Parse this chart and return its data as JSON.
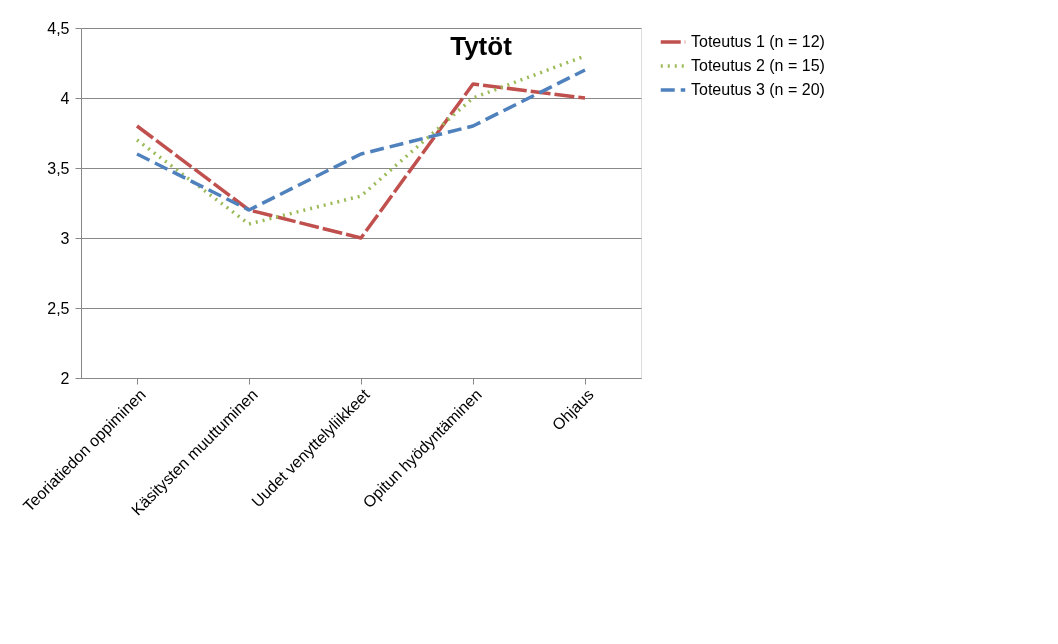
{
  "chart_data": {
    "type": "line",
    "title": "Tytöt",
    "categories": [
      "Teoriatiedon oppiminen",
      "Käsitysten muuttuminen",
      "Uudet venyttelyliikkeet",
      "Opitun hyödyntäminen",
      "Ohjaus"
    ],
    "series": [
      {
        "name": "Toteutus 1 (n = 12)",
        "color": "#c0504d",
        "line_style": "dashed",
        "values": [
          3.8,
          3.2,
          3.0,
          4.1,
          4.0
        ]
      },
      {
        "name": "Toteutus 2 (n = 15)",
        "color": "#9bbb59",
        "line_style": "dotted",
        "values": [
          3.7,
          3.1,
          3.3,
          4.0,
          4.3
        ]
      },
      {
        "name": "Toteutus 3 (n = 20)",
        "color": "#4f81bd",
        "line_style": "dashed",
        "values": [
          3.6,
          3.2,
          3.6,
          3.8,
          4.2
        ]
      }
    ],
    "ylim": [
      2,
      4.5
    ],
    "yticks": [
      2,
      {
        "value": 2.5,
        "label": "2,5"
      },
      3,
      {
        "value": 3.5,
        "label": "3,5"
      },
      4,
      {
        "value": 4.5,
        "label": "4,5"
      }
    ],
    "grid": "y",
    "legend": "right",
    "marker": "none"
  }
}
